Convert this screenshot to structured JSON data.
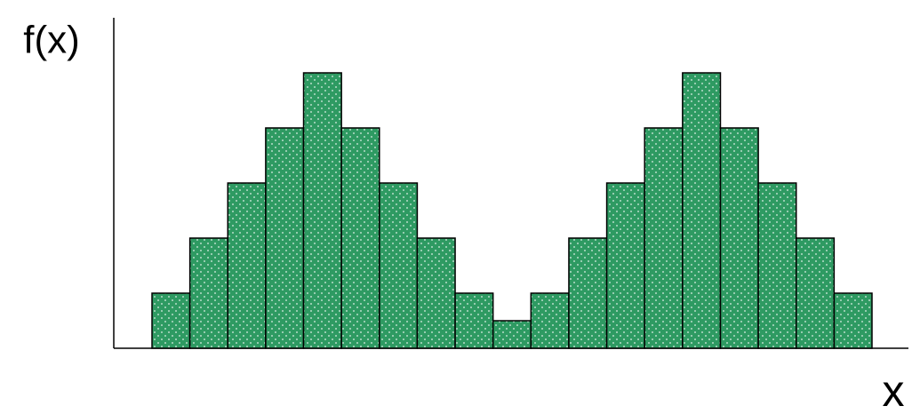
{
  "chart_data": {
    "type": "histogram",
    "y_label": "f(x)",
    "x_label": "x",
    "values": [
      1,
      2,
      3,
      4,
      5,
      4,
      3,
      2,
      1,
      0.5,
      1,
      2,
      3,
      4,
      5,
      4,
      3,
      2,
      1
    ],
    "color": "#2e9a62",
    "ylim": [
      0,
      6
    ]
  }
}
